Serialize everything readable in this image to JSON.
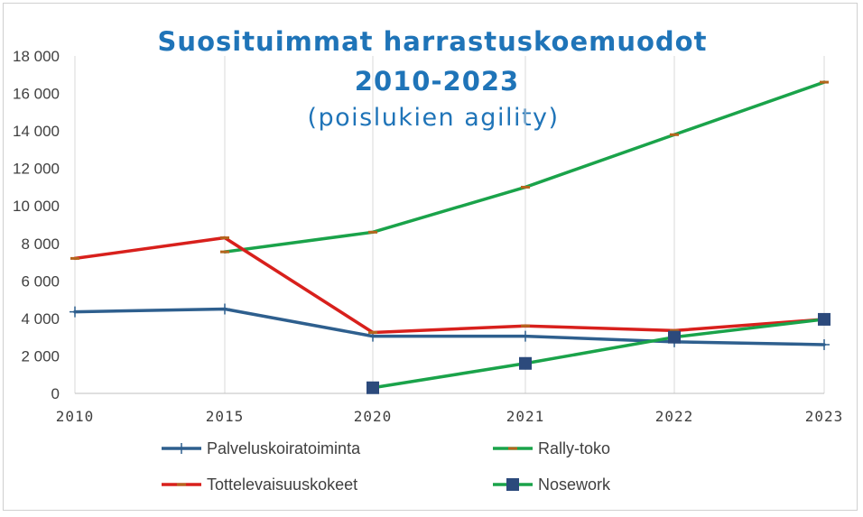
{
  "chart_data": {
    "type": "line",
    "title": "Suosituimmat harrastuskoemuodot",
    "title_line2": "2010-2023",
    "subtitle": "(poislukien agility)",
    "categories": [
      "2010",
      "2015",
      "2020",
      "2021",
      "2022",
      "2023"
    ],
    "y_ticks": [
      "0",
      "2 000",
      "4 000",
      "6 000",
      "8 000",
      "10 000",
      "12 000",
      "14 000",
      "16 000",
      "18 000"
    ],
    "ylim": [
      0,
      18000
    ],
    "grid": "vertical",
    "legend_position": "bottom",
    "series": [
      {
        "name": "Palveluskoiratoiminta",
        "color": "#2e5f8e",
        "marker": "plus",
        "values": [
          4350,
          4500,
          3050,
          3050,
          2750,
          2600
        ]
      },
      {
        "name": "Rally-toko",
        "color": "#1aa34a",
        "marker": "dash",
        "values": [
          null,
          7550,
          8600,
          11000,
          13800,
          16600
        ]
      },
      {
        "name": "Tottelevaisuuskokeet",
        "color": "#d8201c",
        "marker": "dash",
        "values": [
          7200,
          8300,
          3250,
          3600,
          3350,
          3950
        ]
      },
      {
        "name": "Nosework",
        "color": "#1aa34a",
        "marker_color": "#2c4a7c",
        "marker": "square",
        "values": [
          null,
          null,
          300,
          1600,
          3000,
          3950
        ]
      }
    ]
  }
}
